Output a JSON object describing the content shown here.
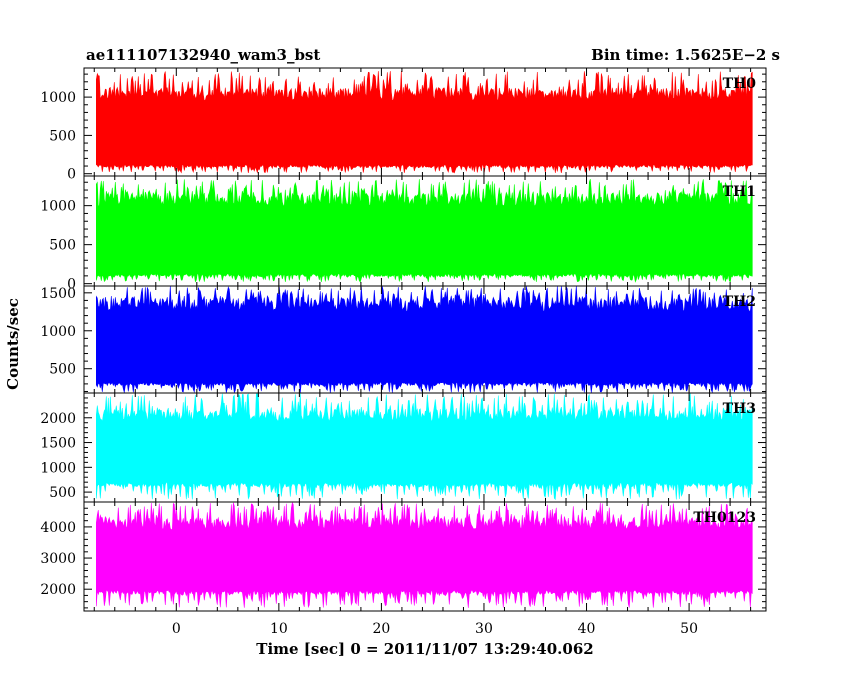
{
  "chart_data": {
    "type": "line",
    "title": "ae111107132940_wam3_bst",
    "subtitle": "Bin time: 1.5625E−2 s",
    "xlabel": "Time [sec] 0 = 2011/11/07 13:29:40.062",
    "ylabel": "Counts/sec",
    "xlim": [
      -9,
      57.5
    ],
    "x_ticks": [
      0,
      10,
      20,
      30,
      40,
      50
    ],
    "grid": false,
    "panels": [
      {
        "name": "TH0",
        "color": "#ff0000",
        "ylim": [
          -30,
          1380
        ],
        "y_ticks": [
          0,
          500,
          1000
        ],
        "y_tick_labels": [
          "0",
          "500",
          "1000"
        ],
        "x_range": [
          -7.8,
          56.2
        ],
        "low": 100,
        "lowMin": 10,
        "high": 1040,
        "highMax": 1340
      },
      {
        "name": "TH1",
        "color": "#00ff00",
        "ylim": [
          -30,
          1380
        ],
        "y_ticks": [
          0,
          500,
          1000
        ],
        "y_tick_labels": [
          "0",
          "500",
          "1000"
        ],
        "x_range": [
          -7.8,
          56.2
        ],
        "low": 110,
        "lowMin": 20,
        "high": 1080,
        "highMax": 1340
      },
      {
        "name": "TH2",
        "color": "#0000ff",
        "ylim": [
          180,
          1590
        ],
        "y_ticks": [
          500,
          1000,
          1500
        ],
        "y_tick_labels": [
          "500",
          "1000",
          "1500"
        ],
        "x_range": [
          -7.8,
          56.2
        ],
        "low": 300,
        "lowMin": 180,
        "high": 1350,
        "highMax": 1590
      },
      {
        "name": "TH3",
        "color": "#00ffff",
        "ylim": [
          300,
          2500
        ],
        "y_ticks": [
          500,
          1000,
          1500,
          2000
        ],
        "y_tick_labels": [
          "500",
          "1000",
          "1500",
          "2000"
        ],
        "x_range": [
          -7.8,
          56.2
        ],
        "low": 650,
        "lowMin": 350,
        "high": 2050,
        "highMax": 2490
      },
      {
        "name": "TH0123",
        "color": "#ff00ff",
        "ylim": [
          1300,
          4800
        ],
        "y_ticks": [
          2000,
          3000,
          4000
        ],
        "y_tick_labels": [
          "2000",
          "3000",
          "4000"
        ],
        "x_range": [
          -7.8,
          56.2
        ],
        "low": 1900,
        "lowMin": 1400,
        "high": 4100,
        "highMax": 4780
      }
    ]
  }
}
